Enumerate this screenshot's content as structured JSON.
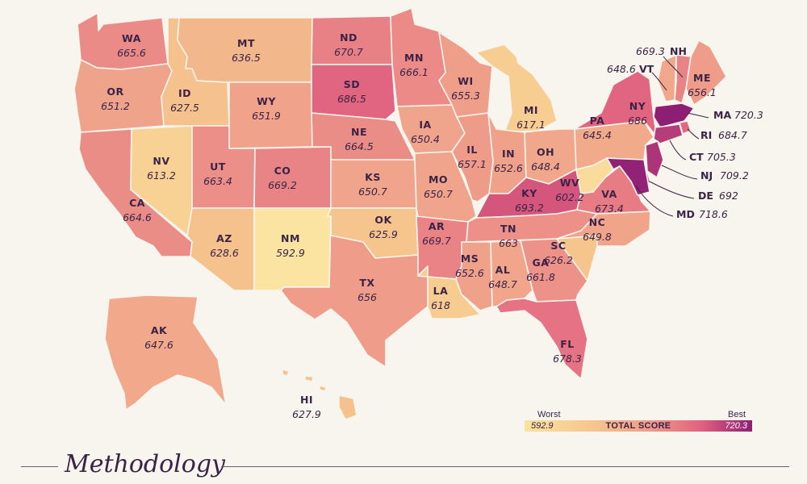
{
  "map": {
    "title": "",
    "scale": {
      "min": 592.9,
      "max": 720.3,
      "colors": [
        "#fbe3a1",
        "#f6c68d",
        "#ef9c8a",
        "#e0607f",
        "#8e1e74"
      ]
    },
    "states": [
      {
        "abbr": "WA",
        "score": 665.6
      },
      {
        "abbr": "OR",
        "score": 651.2
      },
      {
        "abbr": "CA",
        "score": 664.6
      },
      {
        "abbr": "NV",
        "score": 613.2
      },
      {
        "abbr": "ID",
        "score": 627.5
      },
      {
        "abbr": "MT",
        "score": 636.5
      },
      {
        "abbr": "WY",
        "score": 651.9
      },
      {
        "abbr": "UT",
        "score": 663.4
      },
      {
        "abbr": "AZ",
        "score": 628.6
      },
      {
        "abbr": "CO",
        "score": 669.2
      },
      {
        "abbr": "NM",
        "score": 592.9
      },
      {
        "abbr": "ND",
        "score": 670.7
      },
      {
        "abbr": "SD",
        "score": 686.5
      },
      {
        "abbr": "NE",
        "score": 664.5
      },
      {
        "abbr": "KS",
        "score": 650.7
      },
      {
        "abbr": "OK",
        "score": 625.9
      },
      {
        "abbr": "TX",
        "score": 656
      },
      {
        "abbr": "MN",
        "score": 666.1
      },
      {
        "abbr": "IA",
        "score": 650.4
      },
      {
        "abbr": "MO",
        "score": 650.7
      },
      {
        "abbr": "AR",
        "score": 669.7
      },
      {
        "abbr": "LA",
        "score": 618
      },
      {
        "abbr": "WI",
        "score": 655.3
      },
      {
        "abbr": "IL",
        "score": 657.1
      },
      {
        "abbr": "MI",
        "score": 617.1
      },
      {
        "abbr": "IN",
        "score": 652.6
      },
      {
        "abbr": "OH",
        "score": 648.4
      },
      {
        "abbr": "KY",
        "score": 693.2
      },
      {
        "abbr": "TN",
        "score": 663
      },
      {
        "abbr": "MS",
        "score": 652.6
      },
      {
        "abbr": "AL",
        "score": 648.7
      },
      {
        "abbr": "GA",
        "score": 661.8
      },
      {
        "abbr": "FL",
        "score": 678.3
      },
      {
        "abbr": "SC",
        "score": 626.2
      },
      {
        "abbr": "NC",
        "score": 649.8
      },
      {
        "abbr": "VA",
        "score": 673.4
      },
      {
        "abbr": "WV",
        "score": 602.2
      },
      {
        "abbr": "PA",
        "score": 645.4
      },
      {
        "abbr": "NY",
        "score": 686
      },
      {
        "abbr": "ME",
        "score": 656.1
      },
      {
        "abbr": "AK",
        "score": 647.6
      },
      {
        "abbr": "HI",
        "score": 627.9
      }
    ],
    "callouts": [
      {
        "abbr": "NH",
        "score": 669.3
      },
      {
        "abbr": "VT",
        "score": 648.6
      },
      {
        "abbr": "MA",
        "score": 720.3
      },
      {
        "abbr": "RI",
        "score": 684.7
      },
      {
        "abbr": "CT",
        "score": 705.3
      },
      {
        "abbr": "NJ",
        "score": 709.2
      },
      {
        "abbr": "DE",
        "score": 692
      },
      {
        "abbr": "MD",
        "score": 718.6
      }
    ]
  },
  "legend": {
    "worst_label": "Worst",
    "best_label": "Best",
    "title": "TOTAL SCORE",
    "min_value": "592.9",
    "max_value": "720.3"
  },
  "methodology": {
    "title": "Methodology"
  }
}
